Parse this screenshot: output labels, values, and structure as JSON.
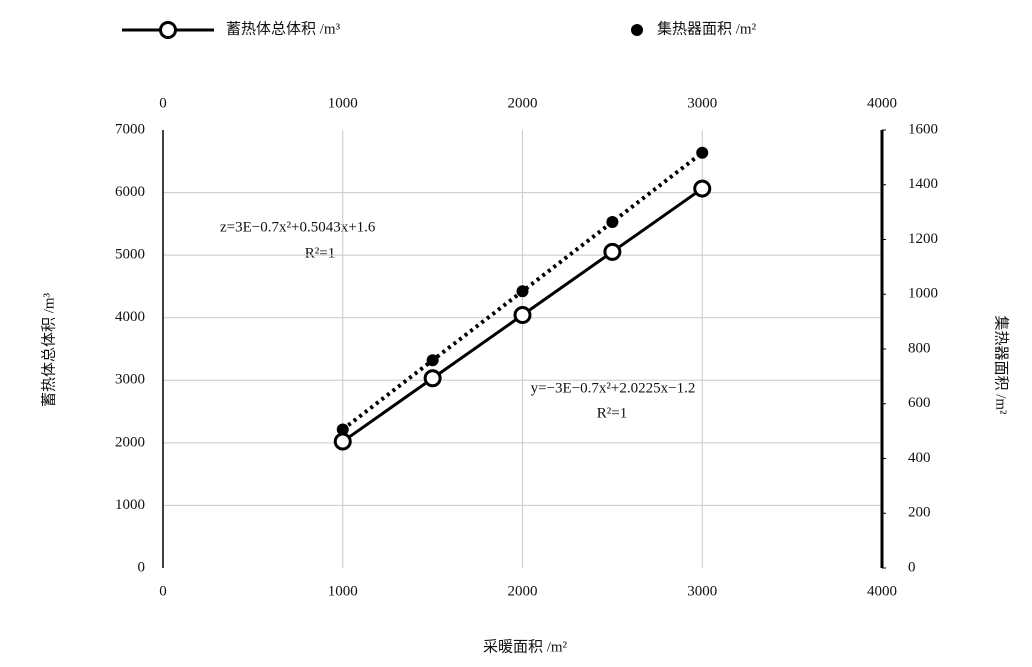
{
  "chart_data": {
    "type": "line",
    "x": [
      1000,
      1500,
      2000,
      2500,
      3000
    ],
    "series": [
      {
        "name": "蓄热体总体积 /m³",
        "color": "#000000",
        "linestyle": "solid",
        "marker": "open-circle",
        "values": [
          2021,
          3032,
          4043,
          5053,
          6064
        ]
      },
      {
        "name": "集热器面积 /m²",
        "color": "#000000",
        "linestyle": "dotted",
        "marker": "filled-circle",
        "axis": "y2",
        "values": [
          506,
          759,
          1011,
          1264,
          1517
        ]
      }
    ],
    "xlabel": "采暖面积 /m²",
    "ylabel": "蓄热体总体积 /m³",
    "y2label": "集热器面积 /m²",
    "xlim": [
      0,
      4000
    ],
    "xticks": [
      0,
      1000,
      2000,
      3000,
      4000
    ],
    "ylim": [
      0,
      7000
    ],
    "yticks": [
      0,
      1000,
      2000,
      3000,
      4000,
      5000,
      6000,
      7000
    ],
    "y2lim": [
      0,
      1600
    ],
    "y2ticks": [
      0,
      200,
      400,
      600,
      800,
      1000,
      1200,
      1400,
      1600
    ],
    "grid": true,
    "legend": "top",
    "annotations": [
      "z=3E−0.7x²+0.5043x+1.6",
      "R²=1",
      "y=−3E−0.7x²+2.0225x−1.2",
      "R²=1"
    ]
  }
}
